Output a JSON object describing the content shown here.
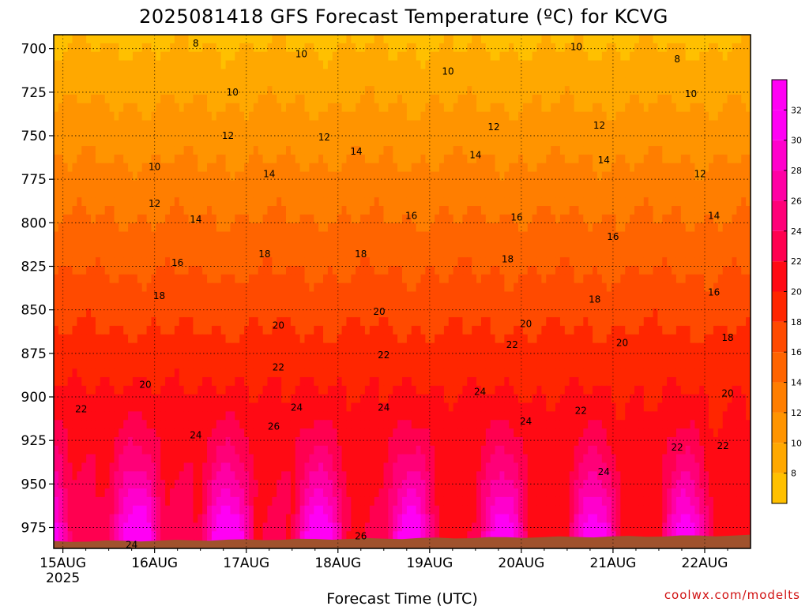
{
  "chart_data": {
    "type": "heatmap",
    "title": "2025081418 GFS Forecast Temperature (ºC) for KCVG",
    "xlabel": "Forecast Time (UTC)",
    "ylabel": "",
    "credit": "coolwx.com/modelts",
    "y_ticks": [
      "700",
      "725",
      "750",
      "775",
      "800",
      "825",
      "850",
      "875",
      "900",
      "925",
      "950",
      "975"
    ],
    "y_range": [
      692,
      987
    ],
    "x_ticks": [
      "15AUG",
      "16AUG",
      "17AUG",
      "18AUG",
      "19AUG",
      "20AUG",
      "21AUG",
      "22AUG"
    ],
    "x_year": "2025",
    "x_range": [
      -0.1,
      7.5
    ],
    "grid": true,
    "colorbar": {
      "levels": [
        "8",
        "10",
        "12",
        "14",
        "16",
        "18",
        "20",
        "22",
        "24",
        "26",
        "28",
        "30",
        "32"
      ],
      "range": [
        6,
        34
      ],
      "colors": [
        "#ffc000",
        "#ffa800",
        "#ff9400",
        "#ff7e00",
        "#ff6400",
        "#ff4a00",
        "#ff2600",
        "#ff0a14",
        "#ff0050",
        "#ff0078",
        "#ff00a4",
        "#ff00cc",
        "#ff00f4"
      ]
    },
    "ground_color": "#a0522d",
    "contour_labels": [
      {
        "text": "8",
        "x": 1.45,
        "p": 697
      },
      {
        "text": "10",
        "x": 2.6,
        "p": 703
      },
      {
        "text": "10",
        "x": 4.2,
        "p": 713
      },
      {
        "text": "10",
        "x": 5.6,
        "p": 699
      },
      {
        "text": "8",
        "x": 6.7,
        "p": 706
      },
      {
        "text": "10",
        "x": 1.85,
        "p": 725
      },
      {
        "text": "10",
        "x": 6.85,
        "p": 726
      },
      {
        "text": "12",
        "x": 1.8,
        "p": 750
      },
      {
        "text": "12",
        "x": 2.85,
        "p": 751
      },
      {
        "text": "12",
        "x": 4.7,
        "p": 745
      },
      {
        "text": "12",
        "x": 5.85,
        "p": 744
      },
      {
        "text": "10",
        "x": 1.0,
        "p": 768
      },
      {
        "text": "14",
        "x": 3.2,
        "p": 759
      },
      {
        "text": "14",
        "x": 4.5,
        "p": 761
      },
      {
        "text": "14",
        "x": 5.9,
        "p": 764
      },
      {
        "text": "12",
        "x": 6.95,
        "p": 772
      },
      {
        "text": "14",
        "x": 2.25,
        "p": 772
      },
      {
        "text": "12",
        "x": 1.0,
        "p": 789
      },
      {
        "text": "14",
        "x": 1.45,
        "p": 798
      },
      {
        "text": "16",
        "x": 3.8,
        "p": 796
      },
      {
        "text": "16",
        "x": 4.95,
        "p": 797
      },
      {
        "text": "14",
        "x": 7.1,
        "p": 796
      },
      {
        "text": "16",
        "x": 6.0,
        "p": 808
      },
      {
        "text": "16",
        "x": 1.25,
        "p": 823
      },
      {
        "text": "18",
        "x": 2.2,
        "p": 818
      },
      {
        "text": "18",
        "x": 3.25,
        "p": 818
      },
      {
        "text": "18",
        "x": 4.85,
        "p": 821
      },
      {
        "text": "16",
        "x": 7.1,
        "p": 840
      },
      {
        "text": "18",
        "x": 1.05,
        "p": 842
      },
      {
        "text": "18",
        "x": 5.8,
        "p": 844
      },
      {
        "text": "20",
        "x": 3.45,
        "p": 851
      },
      {
        "text": "20",
        "x": 2.35,
        "p": 859
      },
      {
        "text": "20",
        "x": 5.05,
        "p": 858
      },
      {
        "text": "20",
        "x": 6.1,
        "p": 869
      },
      {
        "text": "18",
        "x": 7.25,
        "p": 866
      },
      {
        "text": "22",
        "x": 3.5,
        "p": 876
      },
      {
        "text": "22",
        "x": 4.9,
        "p": 870
      },
      {
        "text": "22",
        "x": 2.35,
        "p": 883
      },
      {
        "text": "20",
        "x": 0.9,
        "p": 893
      },
      {
        "text": "20",
        "x": 7.25,
        "p": 898
      },
      {
        "text": "22",
        "x": 0.2,
        "p": 907
      },
      {
        "text": "24",
        "x": 2.55,
        "p": 906
      },
      {
        "text": "24",
        "x": 3.5,
        "p": 906
      },
      {
        "text": "24",
        "x": 4.55,
        "p": 897
      },
      {
        "text": "22",
        "x": 5.65,
        "p": 908
      },
      {
        "text": "26",
        "x": 2.3,
        "p": 917
      },
      {
        "text": "24",
        "x": 5.05,
        "p": 914
      },
      {
        "text": "24",
        "x": 1.45,
        "p": 922
      },
      {
        "text": "22",
        "x": 6.7,
        "p": 929
      },
      {
        "text": "22",
        "x": 7.2,
        "p": 928
      },
      {
        "text": "24",
        "x": 5.9,
        "p": 943
      },
      {
        "text": "26",
        "x": 3.25,
        "p": 980
      },
      {
        "text": "24",
        "x": 0.75,
        "p": 985
      }
    ]
  }
}
